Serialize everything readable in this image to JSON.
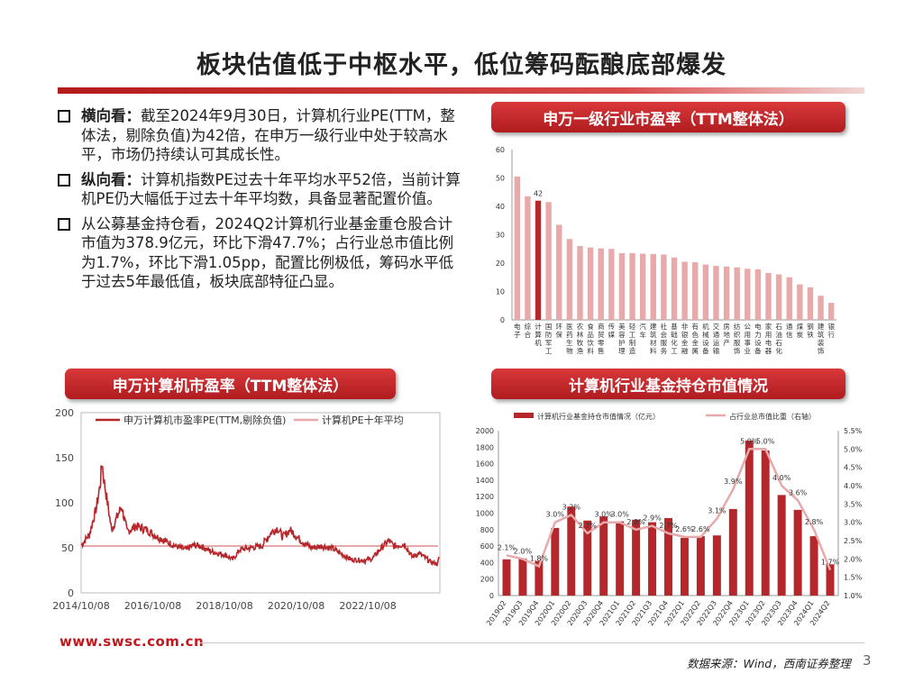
{
  "page": {
    "title": "板块估值低于中枢水平，低位筹码酝酿底部爆发",
    "bullets": [
      {
        "head": "横向看：",
        "text": "截至2024年9月30日，计算机行业PE(TTM，整体法，剔除负值)为42倍，在申万一级行业中处于较高水平，市场仍持续认可其成长性。"
      },
      {
        "head": "纵向看：",
        "text": "计算机指数PE过去十年平均水平52倍，当前计算机PE仍大幅低于过去十年平均数，具备显著配置价值。"
      },
      {
        "head": "",
        "text": "从公募基金持仓看，2024Q2计算机行业基金重仓股合计市值为378.9亿元，环比下滑47.7%；占行业总市值比例为1.7%，环比下滑1.05pp，配置比例极低，筹码水平低于过去5年最低值，板块底部特征凸显。"
      }
    ],
    "footer_url": "www.swsc.com.cn",
    "source": "数据来源：Wind，西南证券整理",
    "page_number": "3"
  },
  "chart_data": [
    {
      "id": "industry-pe",
      "type": "bar",
      "title": "申万一级行业市盈率（TTM整体法）",
      "categories": [
        "电子",
        "综合",
        "计算机",
        "国防军工",
        "环保",
        "医药生物",
        "农林牧渔",
        "食品饮料",
        "商贸零售",
        "传媒",
        "美容护理",
        "轻工制造",
        "汽车",
        "建筑材料",
        "社会服务",
        "基础化工",
        "非银金融",
        "有色金属",
        "机械设备",
        "交通运输",
        "房地产",
        "纺织服饰",
        "公用事业",
        "电力设备",
        "家用电器",
        "石油石化",
        "通信",
        "煤炭",
        "钢铁",
        "建筑装饰",
        "银行"
      ],
      "category_display": [
        "电子",
        "综合",
        "计算机",
        "国防军工",
        "环保",
        "医药生物",
        "农林牧渔",
        "食品饮料",
        "商贸零售",
        "传媒",
        "美容护理",
        "轻工制造",
        "汽车",
        "建筑材料",
        "社会服务",
        "基础化工",
        "非银金融",
        "有色金属",
        "机械设备",
        "交通运输",
        "房地产",
        "纺织服饰",
        "公用事业",
        "电力设备",
        "家用电器",
        "石油石化",
        "通信",
        "煤炭",
        "钢铁",
        "建筑装饰",
        "银行"
      ],
      "values": [
        50.5,
        43.5,
        42,
        41.5,
        33.5,
        28.5,
        26,
        25.5,
        25.2,
        25,
        23.5,
        23.5,
        23.3,
        23.2,
        23,
        22,
        20.5,
        20.3,
        19.5,
        19,
        18.8,
        18.5,
        18,
        17.8,
        16.5,
        16,
        15,
        12.5,
        11.5,
        8.5,
        6
      ],
      "highlight_index": 2,
      "data_labels": [
        {
          "index": 2,
          "text": "42"
        }
      ],
      "yticks": [
        "0",
        "10",
        "20",
        "30",
        "40",
        "50",
        "60"
      ],
      "ylim": [
        0,
        60
      ]
    },
    {
      "id": "computer-pe",
      "type": "line",
      "title": "申万计算机市盈率（TTM整体法）",
      "series": [
        {
          "name": "申万计算机市盈率PE(TTM,剔除负值)",
          "color": "#b6272c"
        },
        {
          "name": "计算机PE十年平均",
          "color": "#e7a9a9",
          "value": 52
        }
      ],
      "key_points": [
        {
          "year": 2014.78,
          "pe": 53
        },
        {
          "year": 2015.0,
          "pe": 65
        },
        {
          "year": 2015.2,
          "pe": 95
        },
        {
          "year": 2015.3,
          "pe": 120
        },
        {
          "year": 2015.35,
          "pe": 145
        },
        {
          "year": 2015.42,
          "pe": 122
        },
        {
          "year": 2015.55,
          "pe": 88
        },
        {
          "year": 2015.62,
          "pe": 70
        },
        {
          "year": 2015.75,
          "pe": 82
        },
        {
          "year": 2015.9,
          "pe": 96
        },
        {
          "year": 2016.05,
          "pe": 68
        },
        {
          "year": 2016.3,
          "pe": 74
        },
        {
          "year": 2016.6,
          "pe": 70
        },
        {
          "year": 2016.9,
          "pe": 62
        },
        {
          "year": 2017.1,
          "pe": 58
        },
        {
          "year": 2017.4,
          "pe": 52
        },
        {
          "year": 2017.7,
          "pe": 48
        },
        {
          "year": 2017.9,
          "pe": 53
        },
        {
          "year": 2018.1,
          "pe": 52
        },
        {
          "year": 2018.4,
          "pe": 46
        },
        {
          "year": 2018.8,
          "pe": 42
        },
        {
          "year": 2019.0,
          "pe": 37
        },
        {
          "year": 2019.2,
          "pe": 48
        },
        {
          "year": 2019.5,
          "pe": 50
        },
        {
          "year": 2019.8,
          "pe": 52
        },
        {
          "year": 2020.1,
          "pe": 68
        },
        {
          "year": 2020.25,
          "pe": 72
        },
        {
          "year": 2020.4,
          "pe": 62
        },
        {
          "year": 2020.6,
          "pe": 70
        },
        {
          "year": 2020.9,
          "pe": 58
        },
        {
          "year": 2021.2,
          "pe": 50
        },
        {
          "year": 2021.5,
          "pe": 52
        },
        {
          "year": 2021.8,
          "pe": 49
        },
        {
          "year": 2022.0,
          "pe": 44
        },
        {
          "year": 2022.3,
          "pe": 37
        },
        {
          "year": 2022.7,
          "pe": 36
        },
        {
          "year": 2022.9,
          "pe": 38
        },
        {
          "year": 2023.1,
          "pe": 48
        },
        {
          "year": 2023.35,
          "pe": 58
        },
        {
          "year": 2023.5,
          "pe": 52
        },
        {
          "year": 2023.8,
          "pe": 54
        },
        {
          "year": 2024.0,
          "pe": 40
        },
        {
          "year": 2024.2,
          "pe": 44
        },
        {
          "year": 2024.5,
          "pe": 35
        },
        {
          "year": 2024.72,
          "pe": 32
        },
        {
          "year": 2024.75,
          "pe": 40
        }
      ],
      "xticks": [
        "2014/10/08",
        "2016/10/08",
        "2018/10/08",
        "2020/10/08",
        "2022/10/08"
      ],
      "yticks": [
        "0",
        "50",
        "100",
        "150",
        "200"
      ],
      "ylim": [
        0,
        200
      ]
    },
    {
      "id": "fund-holdings",
      "type": "bar",
      "title": "计算机行业基金持仓市值情况",
      "series": [
        {
          "name": "计算机行业基金持仓市值情况（亿元）",
          "color": "#b6272c",
          "axis": "left"
        },
        {
          "name": "占行业总市值比重（右轴）",
          "color": "#e7a9a9",
          "axis": "right"
        }
      ],
      "categories": [
        "2019Q2",
        "2019Q3",
        "2019Q4",
        "2020Q1",
        "2020Q2",
        "2020Q3",
        "2020Q4",
        "2021Q1",
        "2021Q2",
        "2021Q3",
        "2021Q4",
        "2022Q1",
        "2022Q2",
        "2022Q3",
        "2022Q4",
        "2023Q1",
        "2023Q2",
        "2023Q3",
        "2023Q4",
        "2024Q1",
        "2024Q2"
      ],
      "holdings": [
        440,
        450,
        420,
        820,
        1080,
        910,
        960,
        900,
        920,
        890,
        940,
        700,
        720,
        730,
        1050,
        1880,
        1760,
        1220,
        1040,
        720,
        379
      ],
      "share_pct": [
        2.1,
        2.0,
        1.8,
        3.0,
        3.2,
        2.7,
        3.0,
        3.0,
        2.8,
        2.9,
        2.7,
        2.6,
        2.6,
        3.1,
        3.9,
        5.0,
        5.0,
        4.0,
        3.6,
        2.8,
        1.7
      ],
      "share_labels": [
        "2.1%",
        "2.0%",
        "1.8%",
        "3.0%",
        "3.2%",
        "2.7%",
        "3.0%",
        "3.0%",
        "2.8%",
        "2.9%",
        "2.7%",
        "2.6%",
        "2.6%",
        "3.1%",
        "3.9%",
        "5.0%",
        "5.0%",
        "4.0%",
        "3.6%",
        "2.8%",
        "1.7%"
      ],
      "yticks_left": [
        "0",
        "200",
        "400",
        "600",
        "800",
        "1000",
        "1200",
        "1400",
        "1600",
        "1800",
        "2000"
      ],
      "yticks_right": [
        "1.0%",
        "1.5%",
        "2.0%",
        "2.5%",
        "3.0%",
        "3.5%",
        "4.0%",
        "4.5%",
        "5.0%",
        "5.5%"
      ],
      "ylim_left": [
        0,
        2000
      ],
      "ylim_right": [
        1.0,
        5.5
      ]
    }
  ]
}
